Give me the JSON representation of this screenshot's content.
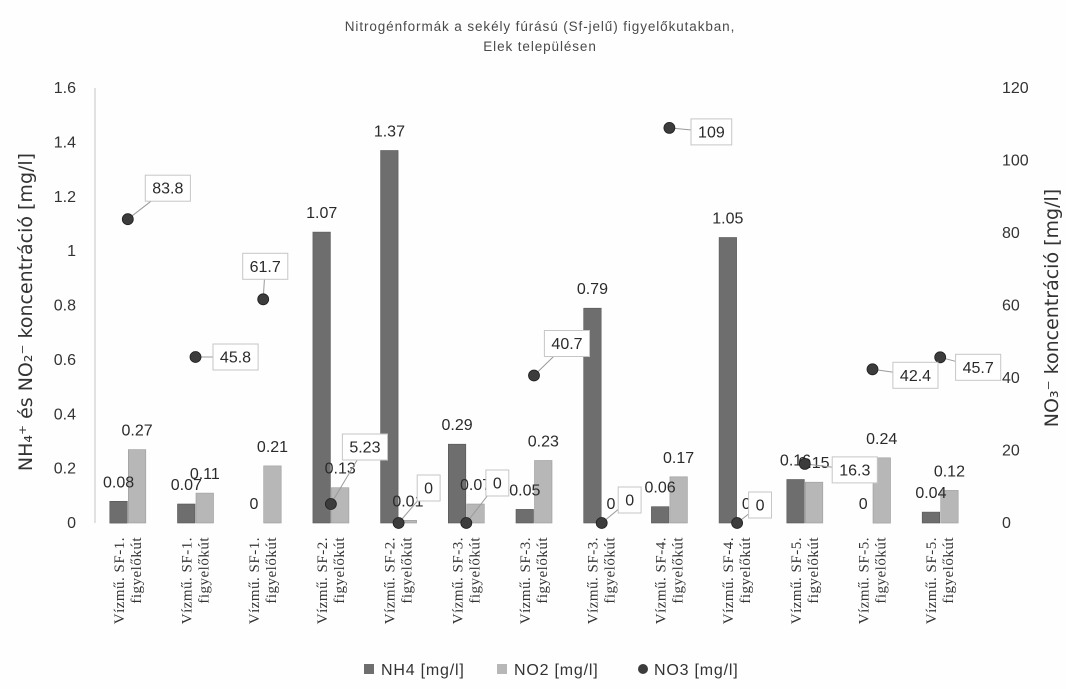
{
  "chart_data": {
    "type": "bar",
    "title": [
      "Nitrogénformák a sekély fúrású (Sf-jelű) figyelőkutakban,",
      "Elek településen"
    ],
    "categories": [
      "Vízmű. SF-1.\nfigyelőkút",
      "Vízmű. SF-1.\nfigyelőkút",
      "Vízmű. SF-1.\nfigyelőkút",
      "Vízmű. SF-2.\nfigyelőkút",
      "Vízmű. SF-2.\nfigyelőkút",
      "Vízmű. SF-3.\nfigyelőkút",
      "Vízmű. SF-3.\nfigyelőkút",
      "Vízmű. SF-3.\nfigyelőkút",
      "Vízmű. SF-4.\nfigyelőkút",
      "Vízmű. SF-4.\nfigyelőkút",
      "Vízmű. SF-5.\nfigyelőkút",
      "Vízmű. SF-5.\nfigyelőkút",
      "Vízmű. SF-5.\nfigyelőkút"
    ],
    "series": [
      {
        "name": "NH4 [mg/l]",
        "type": "bar",
        "axis": "left",
        "color": "#6e6e6e",
        "values": [
          0.08,
          0.07,
          0,
          1.07,
          1.37,
          0.29,
          0.05,
          0.79,
          0.06,
          1.05,
          0.16,
          0,
          0.04
        ]
      },
      {
        "name": "NO2 [mg/l]",
        "type": "bar",
        "axis": "left",
        "color": "#b7b7b7",
        "values": [
          0.27,
          0.11,
          0.21,
          0.13,
          0.01,
          0.07,
          0.23,
          0,
          0.17,
          0,
          0.15,
          0.24,
          0.12
        ]
      },
      {
        "name": "NO3 [mg/l]",
        "type": "scatter",
        "axis": "right",
        "color": "#3c3c3c",
        "values": [
          83.8,
          45.8,
          61.7,
          5.23,
          0,
          0,
          40.7,
          0,
          109,
          0,
          16.3,
          42.4,
          45.7
        ]
      }
    ],
    "ylabel": "NH₄⁺ és NO₂⁻ koncentráció [mg/l]",
    "ylabel_right": "NO₃⁻ koncentráció [mg/l]",
    "ylim": [
      0,
      1.6
    ],
    "ylim_right": [
      0,
      120
    ],
    "yticks": [
      0,
      0.2,
      0.4,
      0.6,
      0.8,
      1,
      1.2,
      1.4,
      1.6
    ],
    "yticks_right": [
      0,
      20,
      40,
      60,
      80,
      100,
      120
    ],
    "data_labels": true,
    "grid": false,
    "legend": "bottom"
  }
}
